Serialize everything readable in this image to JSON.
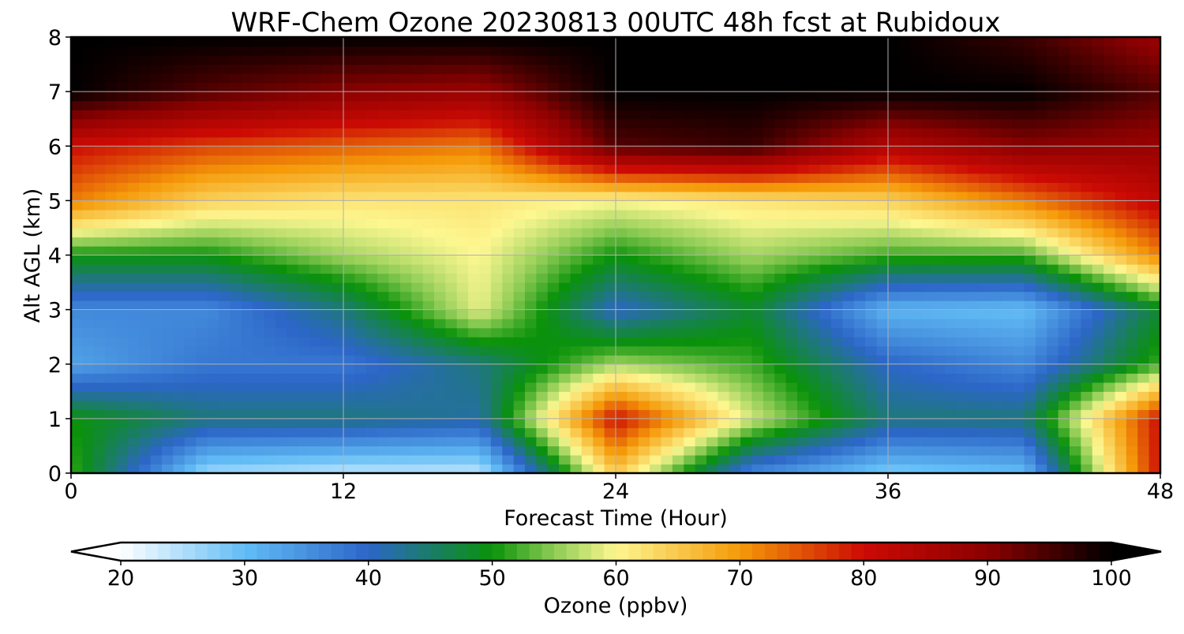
{
  "chart_data": {
    "type": "heatmap",
    "title": "WRF-Chem Ozone  20230813 00UTC 48h fcst at Rubidoux",
    "xlabel": "Forecast Time (Hour)",
    "ylabel": "Alt AGL (km)",
    "xlim": [
      0,
      48
    ],
    "ylim": [
      0,
      8
    ],
    "xticks": [
      0,
      12,
      24,
      36,
      48
    ],
    "yticks": [
      0,
      1,
      2,
      3,
      4,
      5,
      6,
      7,
      8
    ],
    "grid": true,
    "x": [
      0,
      6,
      12,
      18,
      24,
      30,
      36,
      42,
      48
    ],
    "y": [
      0,
      1,
      2,
      3,
      4,
      5,
      6,
      7,
      8
    ],
    "z": [
      [
        52,
        26,
        24,
        24,
        65,
        36,
        28,
        30,
        80
      ],
      [
        50,
        44,
        44,
        42,
        80,
        58,
        44,
        44,
        80
      ],
      [
        33,
        38,
        38,
        44,
        56,
        52,
        40,
        36,
        52
      ],
      [
        36,
        36,
        44,
        59,
        40,
        48,
        31,
        30,
        48
      ],
      [
        50,
        50,
        56,
        60,
        50,
        56,
        52,
        52,
        72
      ],
      [
        72,
        64,
        62,
        62,
        60,
        62,
        64,
        72,
        82
      ],
      [
        80,
        76,
        74,
        72,
        94,
        96,
        84,
        90,
        88
      ],
      [
        100,
        94,
        90,
        88,
        100,
        100,
        100,
        100,
        94
      ],
      [
        100,
        100,
        100,
        100,
        100,
        100,
        100,
        96,
        88
      ]
    ],
    "colorbar": {
      "label": "Ozone  (ppbv)",
      "min": 20,
      "max": 100,
      "ticks": [
        20,
        30,
        40,
        50,
        60,
        70,
        80,
        90,
        100
      ],
      "extend": "both",
      "colors": [
        {
          "v": 20,
          "c": "#ffffff"
        },
        {
          "v": 30,
          "c": "#62bdf6"
        },
        {
          "v": 40,
          "c": "#2c66c8"
        },
        {
          "v": 50,
          "c": "#0a920a"
        },
        {
          "v": 55,
          "c": "#8ecc55"
        },
        {
          "v": 60,
          "c": "#fdf791"
        },
        {
          "v": 70,
          "c": "#f59a09"
        },
        {
          "v": 80,
          "c": "#cc0a04"
        },
        {
          "v": 90,
          "c": "#8b0101"
        },
        {
          "v": 100,
          "c": "#000000"
        }
      ]
    }
  }
}
